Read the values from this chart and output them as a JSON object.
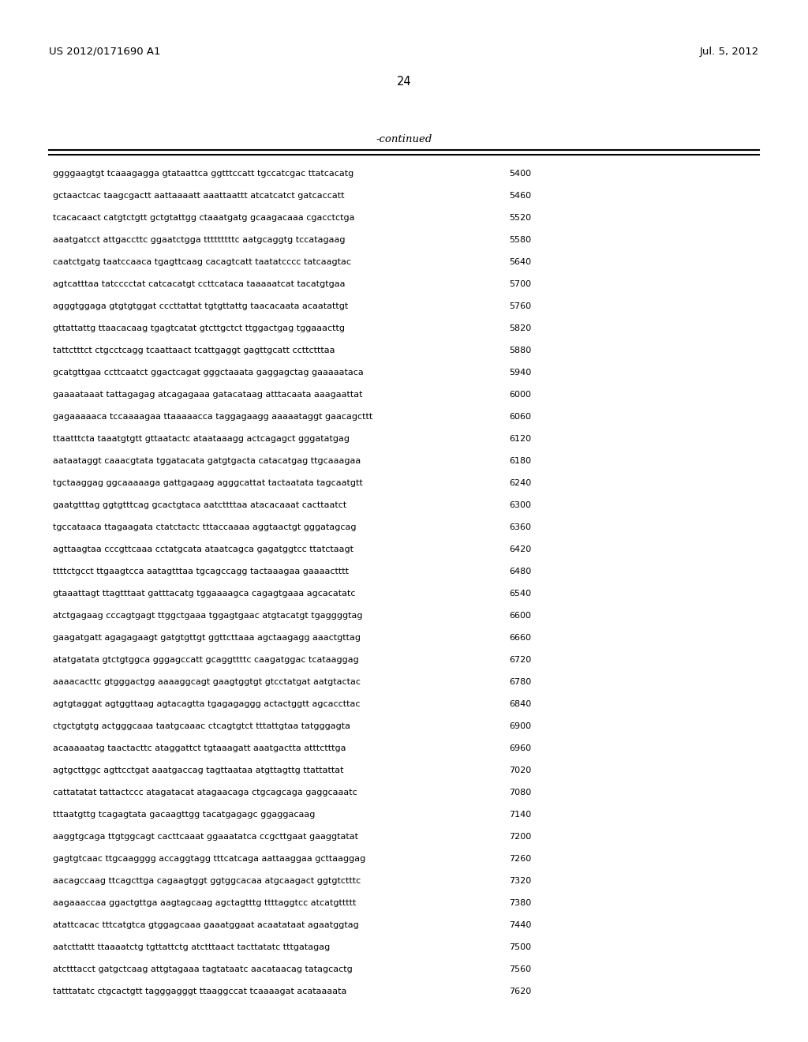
{
  "header_left": "US 2012/0171690 A1",
  "header_right": "Jul. 5, 2012",
  "page_number": "24",
  "continued_label": "-continued",
  "background_color": "#ffffff",
  "text_color": "#000000",
  "font_size_header": 9.5,
  "font_size_page": 10.5,
  "font_size_continued": 9.5,
  "font_size_sequence": 8.0,
  "sequences": [
    [
      "ggggaagtgt tcaaagagga gtataattca ggtttccatt tgccatcgac ttatcacatg",
      "5400"
    ],
    [
      "gctaactcac taagcgactt aattaaaatt aaattaattt atcatcatct gatcaccatt",
      "5460"
    ],
    [
      "tcacacaact catgtctgtt gctgtattgg ctaaatgatg gcaagacaaa cgacctctga",
      "5520"
    ],
    [
      "aaatgatcct attgaccttc ggaatctgga tttttttttc aatgcaggtg tccatagaag",
      "5580"
    ],
    [
      "caatctgatg taatccaaca tgagttcaag cacagtcatt taatatcccc tatcaagtac",
      "5640"
    ],
    [
      "agtcatttaa tatcccctat catcacatgt ccttcataca taaaaatcat tacatgtgaa",
      "5700"
    ],
    [
      "agggtggaga gtgtgtggat cccttattat tgtgttattg taacacaata acaatattgt",
      "5760"
    ],
    [
      "gttattattg ttaacacaag tgagtcatat gtcttgctct ttggactgag tggaaacttg",
      "5820"
    ],
    [
      "tattctttct ctgcctcagg tcaattaact tcattgaggt gagttgcatt ccttctttaa",
      "5880"
    ],
    [
      "gcatgttgaa ccttcaatct ggactcagat gggctaaata gaggagctag gaaaaataca",
      "5940"
    ],
    [
      "gaaaataaat tattagagag atcagagaaa gatacataag atttacaata aaagaattat",
      "6000"
    ],
    [
      "gagaaaaaca tccaaaagaa ttaaaaacca taggagaagg aaaaataggt gaacagcttt",
      "6060"
    ],
    [
      "ttaatttcta taaatgtgtt gttaatactc ataataaagg actcagagct gggatatgag",
      "6120"
    ],
    [
      "aataataggt caaacgtata tggatacata gatgtgacta catacatgag ttgcaaagaa",
      "6180"
    ],
    [
      "tgctaaggag ggcaaaaaga gattgagaag agggcattat tactaatata tagcaatgtt",
      "6240"
    ],
    [
      "gaatgtttag ggtgtttcag gcactgtaca aatcttttaa atacacaaat cacttaatct",
      "6300"
    ],
    [
      "tgccataaca ttagaagata ctatctactc tttaccaaaa aggtaactgt gggatagcag",
      "6360"
    ],
    [
      "agttaagtaa cccgttcaaa cctatgcata ataatcagca gagatggtcc ttatctaagt",
      "6420"
    ],
    [
      "ttttctgcct ttgaagtcca aatagtttaa tgcagccagg tactaaagaa gaaaactttt",
      "6480"
    ],
    [
      "gtaaattagt ttagtttaat gatttacatg tggaaaagca cagagtgaaa agcacatatc",
      "6540"
    ],
    [
      "atctgagaag cccagtgagt ttggctgaaa tggagtgaac atgtacatgt tgaggggtag",
      "6600"
    ],
    [
      "gaagatgatt agagagaagt gatgtgttgt ggttcttaaa agctaagagg aaactgttag",
      "6660"
    ],
    [
      "atatgatata gtctgtggca gggagccatt gcaggttttc caagatggac tcataaggag",
      "6720"
    ],
    [
      "aaaacacttc gtgggactgg aaaaggcagt gaagtggtgt gtcctatgat aatgtactac",
      "6780"
    ],
    [
      "agtgtaggat agtggttaag agtacagtta tgagagaggg actactggtt agcaccttac",
      "6840"
    ],
    [
      "ctgctgtgtg actgggcaaa taatgcaaac ctcagtgtct tttattgtaa tatgggagta",
      "6900"
    ],
    [
      "acaaaaatag taactacttc ataggattct tgtaaagatt aaatgactta atttctttga",
      "6960"
    ],
    [
      "agtgcttggc agttcctgat aaatgaccag tagttaataa atgttagttg ttattattat",
      "7020"
    ],
    [
      "cattatatat tattactccc atagatacat atagaacaga ctgcagcaga gaggcaaatc",
      "7080"
    ],
    [
      "tttaatgttg tcagagtata gacaagttgg tacatgagagc ggaggacaag",
      "7140"
    ],
    [
      "aaggtgcaga ttgtggcagt cacttcaaat ggaaatatca ccgcttgaat gaaggtatat",
      "7200"
    ],
    [
      "gagtgtcaac ttgcaagggg accaggtagg tttcatcaga aattaaggaa gcttaaggag",
      "7260"
    ],
    [
      "aacagccaag ttcagcttga cagaagtggt ggtggcacaa atgcaagact ggtgtctttc",
      "7320"
    ],
    [
      "aagaaaccaa ggactgttga aagtagcaag agctagtttg ttttaggtcc atcatgttttt",
      "7380"
    ],
    [
      "atattcacac tttcatgtca gtggagcaaa gaaatggaat acaatataat agaatggtag",
      "7440"
    ],
    [
      "aatcttattt ttaaaatctg tgttattctg atctttaact tacttatatc tttgatagag",
      "7500"
    ],
    [
      "atctttacct gatgctcaag attgtagaaa tagtataatc aacataacag tatagcactg",
      "7560"
    ],
    [
      "tatttatatc ctgcactgtt tagggagggt ttaaggccat tcaaaagat acataaaata",
      "7620"
    ]
  ]
}
